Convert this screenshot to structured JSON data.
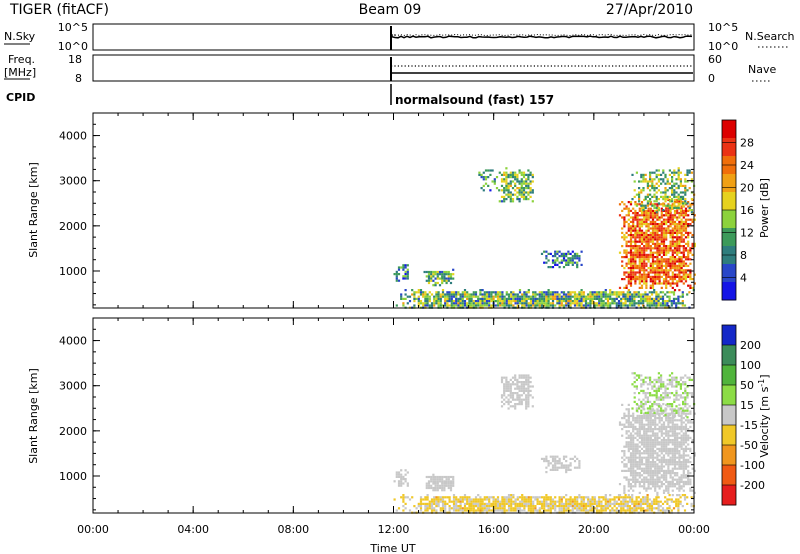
{
  "header": {
    "title": "TIGER (fitACF)",
    "beam": "Beam 09",
    "date": "27/Apr/2010"
  },
  "top_panels": {
    "nsky": {
      "label": "N.Sky",
      "tick_top": "10^5",
      "tick_bottom": "10^0",
      "right_tick_top": "10^5",
      "right_tick_bottom": "10^0",
      "right_label": "N.Search"
    },
    "freq": {
      "label_line1": "Freq.",
      "label_line2": "[MHz]",
      "tick_top": "18",
      "tick_bottom": "8",
      "right_tick_top": "60",
      "right_tick_bottom": "0",
      "right_label": "Nave"
    },
    "cpid": {
      "label": "CPID",
      "program": "normalsound (fast) 157"
    }
  },
  "chart_data": [
    {
      "type": "heatmap",
      "panel": "power",
      "ylabel": "Slant Range [km]",
      "xlabel": "",
      "x_ticks": [
        "00:00",
        "04:00",
        "08:00",
        "12:00",
        "16:00",
        "20:00",
        "00:00"
      ],
      "y_ticks": [
        "1000",
        "2000",
        "3000",
        "4000"
      ],
      "xlim_hours": [
        0,
        24
      ],
      "ylim_km": [
        180,
        4500
      ],
      "colorbar": {
        "label": "Power [dB]",
        "ticks": [
          "4",
          "8",
          "12",
          "16",
          "20",
          "24",
          "28"
        ],
        "range": [
          0,
          32
        ]
      },
      "colors": [
        "#1414e6",
        "#2846c8",
        "#2e7d7d",
        "#3c9a5a",
        "#8cd23c",
        "#e6d21e",
        "#f0a014",
        "#f06e0a",
        "#eb3214",
        "#dc0000"
      ],
      "regions": [
        {
          "t0": 12.0,
          "t1": 24.0,
          "r0": 180,
          "r1": 600,
          "v": 10,
          "density": 0.9
        },
        {
          "t0": 12.0,
          "t1": 12.6,
          "r0": 750,
          "r1": 1200,
          "v": 9,
          "density": 0.6
        },
        {
          "t0": 13.2,
          "t1": 14.4,
          "r0": 700,
          "r1": 1050,
          "v": 12,
          "density": 0.8
        },
        {
          "t0": 15.3,
          "t1": 16.2,
          "r0": 2800,
          "r1": 3300,
          "v": 9,
          "density": 0.4
        },
        {
          "t0": 16.2,
          "t1": 17.6,
          "r0": 2500,
          "r1": 3300,
          "v": 13,
          "density": 0.7
        },
        {
          "t0": 17.8,
          "t1": 19.5,
          "r0": 1100,
          "r1": 1500,
          "v": 8,
          "density": 0.5
        },
        {
          "t0": 21.0,
          "t1": 24.0,
          "r0": 600,
          "r1": 2600,
          "v": 24,
          "density": 0.85
        },
        {
          "t0": 21.5,
          "t1": 24.0,
          "r0": 2300,
          "r1": 3300,
          "v": 14,
          "density": 0.5
        }
      ]
    },
    {
      "type": "heatmap",
      "panel": "velocity",
      "ylabel": "Slant Range [km]",
      "xlabel": "Time UT",
      "x_ticks": [
        "00:00",
        "04:00",
        "08:00",
        "12:00",
        "16:00",
        "20:00",
        "00:00"
      ],
      "y_ticks": [
        "1000",
        "2000",
        "3000",
        "4000"
      ],
      "xlim_hours": [
        0,
        24
      ],
      "ylim_km": [
        180,
        4500
      ],
      "colorbar": {
        "label": "Velocity [m s^-1]",
        "ticks": [
          "200",
          "100",
          "50",
          "15",
          "-15",
          "-50",
          "-100",
          "-200"
        ],
        "range": [
          -250,
          250
        ]
      },
      "colors": [
        "#1428c8",
        "#3c8c5a",
        "#50b43c",
        "#8cdc46",
        "#c8c8c8",
        "#f0c828",
        "#f0961e",
        "#f05a14",
        "#e61e1e"
      ],
      "regions": [
        {
          "t0": 12.0,
          "t1": 24.0,
          "r0": 180,
          "r1": 600,
          "v": -40,
          "density": 0.85
        },
        {
          "t0": 12.0,
          "t1": 12.6,
          "r0": 750,
          "r1": 1200,
          "v": 0,
          "density": 0.6
        },
        {
          "t0": 13.2,
          "t1": 14.4,
          "r0": 700,
          "r1": 1050,
          "v": 0,
          "density": 0.8
        },
        {
          "t0": 16.2,
          "t1": 17.6,
          "r0": 2500,
          "r1": 3300,
          "v": 0,
          "density": 0.7
        },
        {
          "t0": 17.8,
          "t1": 19.5,
          "r0": 1100,
          "r1": 1500,
          "v": 0,
          "density": 0.5
        },
        {
          "t0": 21.0,
          "t1": 24.0,
          "r0": 600,
          "r1": 2600,
          "v": 0,
          "density": 0.8
        },
        {
          "t0": 21.5,
          "t1": 24.0,
          "r0": 2300,
          "r1": 3300,
          "v": 20,
          "density": 0.5
        }
      ]
    }
  ]
}
